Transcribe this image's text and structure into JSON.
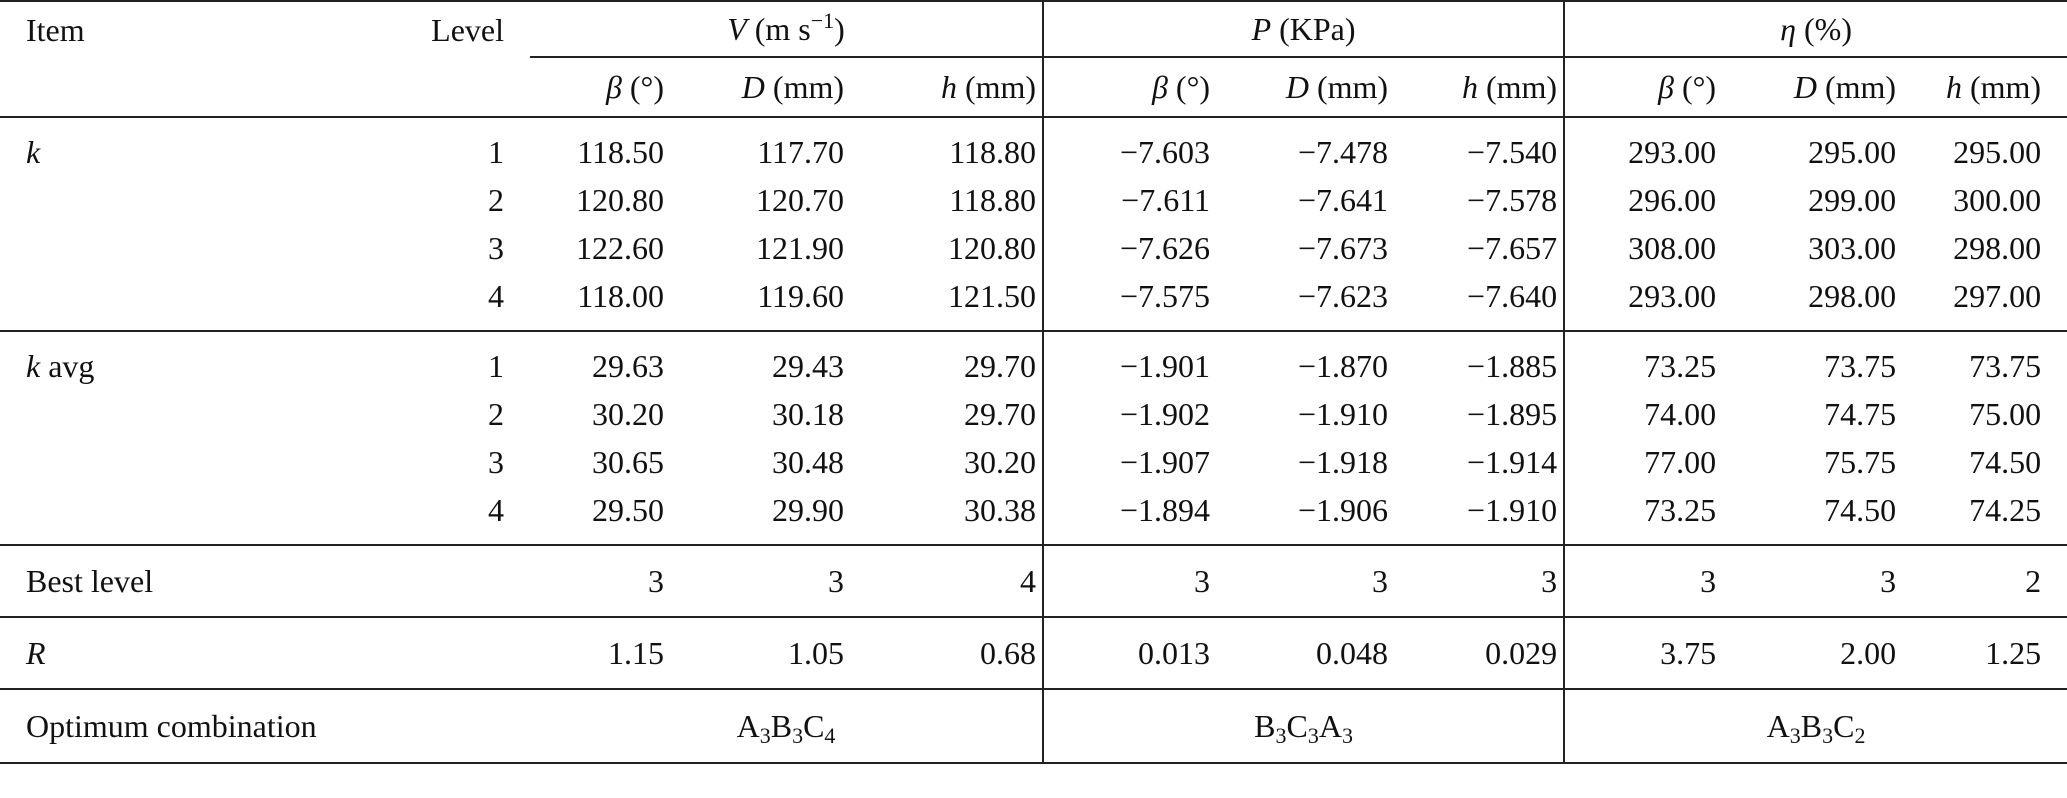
{
  "header": {
    "item": "Item",
    "level": "Level",
    "groups": [
      {
        "sym": "V",
        "unit_pre": " (m s",
        "unit_sup": "−1",
        "unit_post": ")"
      },
      {
        "sym": "P",
        "unit_pre": " (KPa)",
        "unit_sup": "",
        "unit_post": ""
      },
      {
        "sym": "η",
        "unit_pre": " (%)",
        "unit_sup": "",
        "unit_post": ""
      }
    ],
    "factors": [
      {
        "sym": "β",
        "unit": " (°)"
      },
      {
        "sym": "D",
        "unit": " (mm)"
      },
      {
        "sym": "h",
        "unit": " (mm)"
      }
    ]
  },
  "blocks": [
    {
      "item_sym": "k",
      "item_rest": "",
      "rows": [
        {
          "level": "1",
          "values": [
            "118.50",
            "117.70",
            "118.80",
            "−7.603",
            "−7.478",
            "−7.540",
            "293.00",
            "295.00",
            "295.00"
          ]
        },
        {
          "level": "2",
          "values": [
            "120.80",
            "120.70",
            "118.80",
            "−7.611",
            "−7.641",
            "−7.578",
            "296.00",
            "299.00",
            "300.00"
          ]
        },
        {
          "level": "3",
          "values": [
            "122.60",
            "121.90",
            "120.80",
            "−7.626",
            "−7.673",
            "−7.657",
            "308.00",
            "303.00",
            "298.00"
          ]
        },
        {
          "level": "4",
          "values": [
            "118.00",
            "119.60",
            "121.50",
            "−7.575",
            "−7.623",
            "−7.640",
            "293.00",
            "298.00",
            "297.00"
          ]
        }
      ]
    },
    {
      "item_sym": "k",
      "item_rest": " avg",
      "rows": [
        {
          "level": "1",
          "values": [
            "29.63",
            "29.43",
            "29.70",
            "−1.901",
            "−1.870",
            "−1.885",
            "73.25",
            "73.75",
            "73.75"
          ]
        },
        {
          "level": "2",
          "values": [
            "30.20",
            "30.18",
            "29.70",
            "−1.902",
            "−1.910",
            "−1.895",
            "74.00",
            "74.75",
            "75.00"
          ]
        },
        {
          "level": "3",
          "values": [
            "30.65",
            "30.48",
            "30.20",
            "−1.907",
            "−1.918",
            "−1.914",
            "77.00",
            "75.75",
            "74.50"
          ]
        },
        {
          "level": "4",
          "values": [
            "29.50",
            "29.90",
            "30.38",
            "−1.894",
            "−1.906",
            "−1.910",
            "73.25",
            "74.50",
            "74.25"
          ]
        }
      ]
    }
  ],
  "best_level": {
    "label": "Best level",
    "values": [
      "3",
      "3",
      "4",
      "3",
      "3",
      "3",
      "3",
      "3",
      "2"
    ]
  },
  "range": {
    "label": "R",
    "values": [
      "1.15",
      "1.05",
      "0.68",
      "0.013",
      "0.048",
      "0.029",
      "3.75",
      "2.00",
      "1.25"
    ]
  },
  "optimum": {
    "label": "Optimum combination",
    "combos": [
      [
        [
          "A",
          "3"
        ],
        [
          "B",
          "3"
        ],
        [
          "C",
          "4"
        ]
      ],
      [
        [
          "B",
          "3"
        ],
        [
          "C",
          "3"
        ],
        [
          "A",
          "3"
        ]
      ],
      [
        [
          "A",
          "3"
        ],
        [
          "B",
          "3"
        ],
        [
          "C",
          "2"
        ]
      ]
    ]
  }
}
